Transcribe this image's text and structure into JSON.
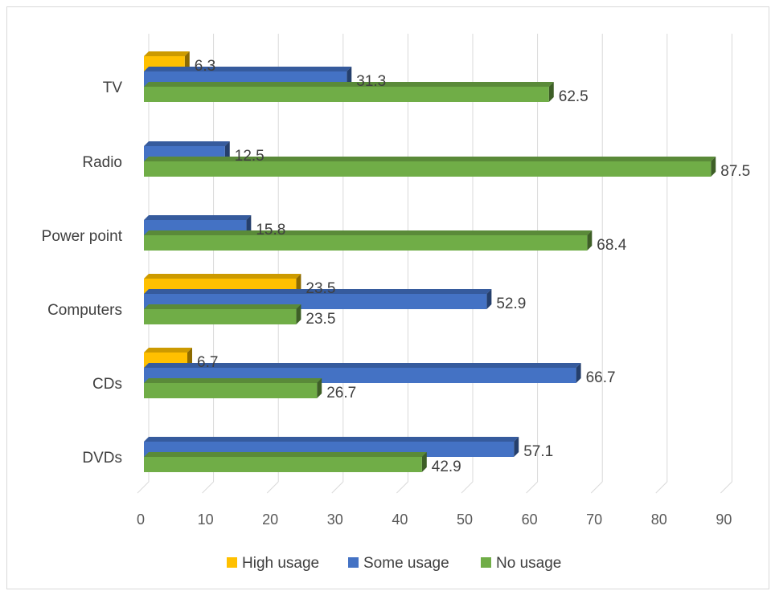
{
  "chart_data": {
    "type": "bar",
    "orientation": "horizontal",
    "style": "3d",
    "categories": [
      "TV",
      "Radio",
      "Power point",
      "Computers",
      "CDs",
      "DVDs"
    ],
    "series": [
      {
        "name": "High usage",
        "color": "#FFC000",
        "values": [
          6.3,
          0,
          0,
          23.5,
          6.7,
          0
        ]
      },
      {
        "name": "Some usage",
        "color": "#4472C4",
        "values": [
          31.3,
          12.5,
          15.8,
          52.9,
          66.7,
          57.1
        ]
      },
      {
        "name": "No usage",
        "color": "#70AD47",
        "values": [
          62.5,
          87.5,
          68.4,
          23.5,
          26.7,
          42.9
        ]
      }
    ],
    "data_labels": [
      [
        "6.3",
        "",
        "",
        "23.5",
        "6.7",
        ""
      ],
      [
        "31.3",
        "12.5",
        "15.8",
        "52.9",
        "66.7",
        "57.1"
      ],
      [
        "62.5",
        "87.5",
        "68.4",
        "23.5",
        "26.7",
        "42.9"
      ]
    ],
    "x_ticks": [
      "0",
      "10",
      "20",
      "30",
      "40",
      "50",
      "60",
      "70",
      "80",
      "90"
    ],
    "xlim": [
      0,
      90
    ],
    "grid": "vertical",
    "legend": "bottom"
  }
}
